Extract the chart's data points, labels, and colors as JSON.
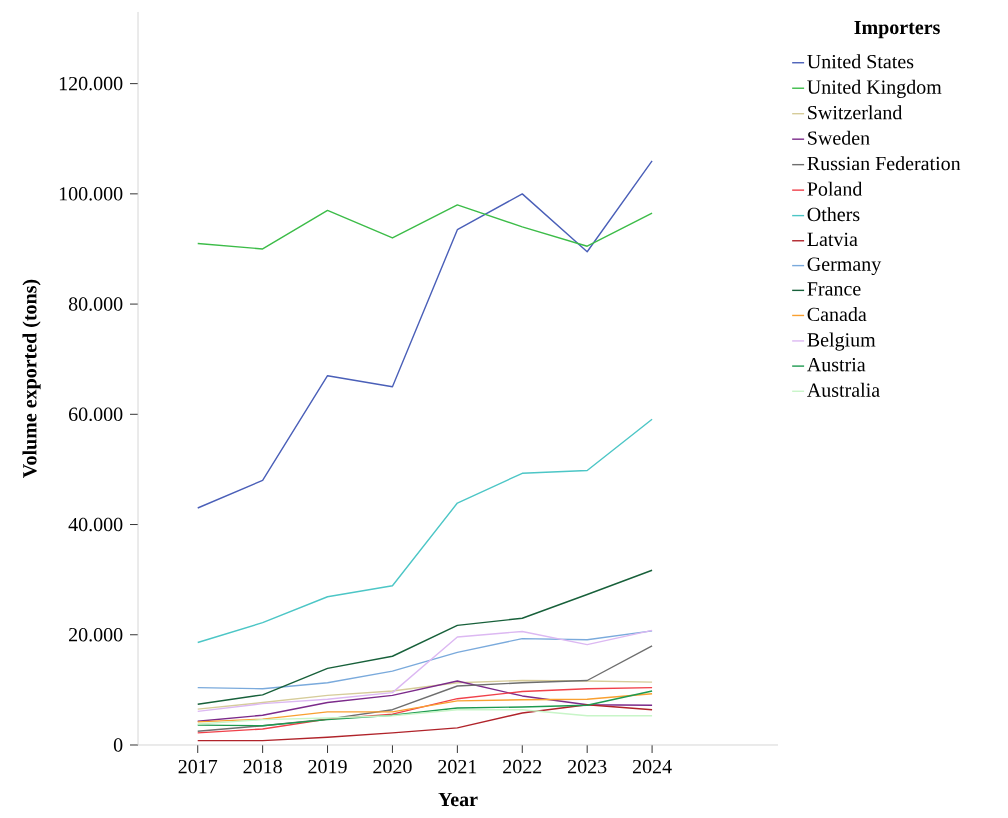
{
  "chart_data": {
    "type": "line",
    "xlabel": "Year",
    "ylabel": "Volume exported (tons)",
    "legend_title": "Importers",
    "legend": "right",
    "grid": false,
    "categories": [
      "2017",
      "2018",
      "2019",
      "2020",
      "2021",
      "2022",
      "2023",
      "2024"
    ],
    "ylim": [
      0,
      133000
    ],
    "yticks": [
      {
        "value": 0,
        "label": "0"
      },
      {
        "value": 20000,
        "label": "20.000"
      },
      {
        "value": 40000,
        "label": "40.000"
      },
      {
        "value": 60000,
        "label": "60.000"
      },
      {
        "value": 80000,
        "label": "80.000"
      },
      {
        "value": 100000,
        "label": "100.000"
      },
      {
        "value": 120000,
        "label": "120.000"
      }
    ],
    "series": [
      {
        "name": "United States",
        "color": "#4a5fb8",
        "values": [
          43000,
          48000,
          67000,
          65000,
          93500,
          100000,
          89500,
          106000
        ]
      },
      {
        "name": "United Kingdom",
        "color": "#3cbc48",
        "values": [
          91000,
          90000,
          97000,
          92000,
          98000,
          94000,
          90500,
          96500
        ]
      },
      {
        "name": "Switzerland",
        "color": "#d6cc9a",
        "values": [
          6500,
          7700,
          9000,
          9800,
          11300,
          11700,
          11600,
          11400
        ]
      },
      {
        "name": "Sweden",
        "color": "#7b2a8a",
        "values": [
          4300,
          5400,
          7700,
          9000,
          11600,
          8900,
          7300,
          7200
        ]
      },
      {
        "name": "Russian Federation",
        "color": "#6e6e6e",
        "values": [
          2500,
          3500,
          4700,
          6400,
          10700,
          11300,
          11700,
          18000
        ]
      },
      {
        "name": "Poland",
        "color": "#f0414a",
        "values": [
          2200,
          2900,
          4700,
          5600,
          8400,
          9700,
          10200,
          10400
        ]
      },
      {
        "name": "Others",
        "color": "#4cc6c6",
        "values": [
          18600,
          22200,
          26900,
          28900,
          43900,
          49300,
          49800,
          59100
        ]
      },
      {
        "name": "Latvia",
        "color": "#b0232a",
        "values": [
          800,
          800,
          1400,
          2200,
          3100,
          5800,
          7300,
          6400
        ]
      },
      {
        "name": "Germany",
        "color": "#7aaadc",
        "values": [
          10400,
          10200,
          11300,
          13400,
          16800,
          19300,
          19100,
          20700
        ]
      },
      {
        "name": "France",
        "color": "#17603a",
        "values": [
          7400,
          9100,
          13900,
          16100,
          21700,
          23000,
          27300,
          31700
        ]
      },
      {
        "name": "Canada",
        "color": "#f9a030",
        "values": [
          4200,
          4700,
          6000,
          6000,
          8000,
          8200,
          8300,
          9300
        ]
      },
      {
        "name": "Belgium",
        "color": "#dcb8f2",
        "values": [
          6100,
          7500,
          8300,
          9500,
          19600,
          20600,
          18200,
          20800
        ]
      },
      {
        "name": "Austria",
        "color": "#1e9a50",
        "values": [
          3600,
          3500,
          4600,
          5400,
          6700,
          6900,
          7200,
          9800
        ]
      },
      {
        "name": "Australia",
        "color": "#c8f5c8",
        "values": [
          3800,
          4600,
          4900,
          5300,
          6400,
          6400,
          5300,
          5300
        ]
      }
    ]
  }
}
